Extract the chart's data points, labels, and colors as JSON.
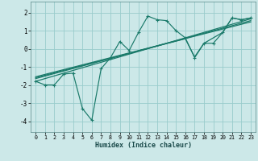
{
  "xlabel": "Humidex (Indice chaleur)",
  "background_color": "#cce8e8",
  "grid_color": "#99cccc",
  "line_color": "#1a7a6a",
  "xlim": [
    -0.5,
    23.5
  ],
  "ylim": [
    -4.6,
    2.6
  ],
  "xticks": [
    0,
    1,
    2,
    3,
    4,
    5,
    6,
    7,
    8,
    9,
    10,
    11,
    12,
    13,
    14,
    15,
    16,
    17,
    18,
    19,
    20,
    21,
    22,
    23
  ],
  "yticks": [
    -4,
    -3,
    -2,
    -1,
    0,
    1,
    2
  ],
  "series0_x": [
    0,
    1,
    2,
    3,
    4,
    5,
    6,
    7,
    8,
    9,
    10,
    11,
    12,
    13,
    14,
    15,
    16,
    17,
    18,
    19,
    20,
    21,
    22,
    23
  ],
  "series0_y": [
    -1.8,
    -2.0,
    -2.0,
    -1.4,
    -1.35,
    -3.3,
    -3.95,
    -1.1,
    -0.5,
    0.4,
    -0.1,
    0.9,
    1.8,
    1.6,
    1.55,
    1.0,
    0.6,
    -0.5,
    0.3,
    0.3,
    0.9,
    1.7,
    1.6,
    1.7
  ],
  "smooth_lines": [
    {
      "x": [
        0,
        23
      ],
      "y": [
        -1.8,
        1.65
      ]
    },
    {
      "x": [
        0,
        23
      ],
      "y": [
        -1.65,
        1.55
      ]
    },
    {
      "x": [
        0,
        23
      ],
      "y": [
        -1.55,
        1.48
      ]
    },
    {
      "x": [
        0,
        16,
        17,
        18,
        20,
        21,
        22,
        23
      ],
      "y": [
        -1.6,
        0.55,
        -0.45,
        0.3,
        0.9,
        1.7,
        1.6,
        1.7
      ]
    }
  ]
}
